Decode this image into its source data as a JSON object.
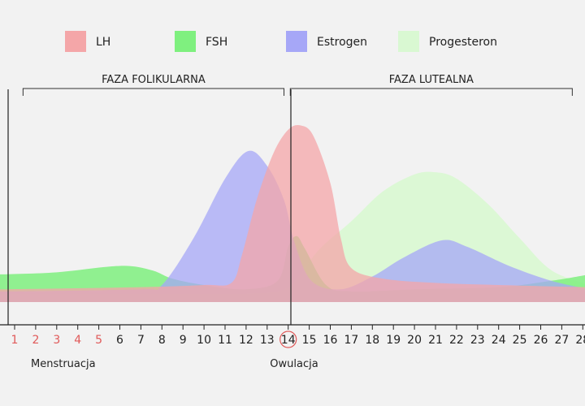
{
  "chart_data": {
    "type": "area",
    "legend_placement": "top",
    "grid": false,
    "legend": [
      {
        "name": "LH",
        "color": "#f4a6a8"
      },
      {
        "name": "FSH",
        "color": "#7ff07f"
      },
      {
        "name": "Estrogen",
        "color": "#a6a7f7"
      },
      {
        "name": "Progesteron",
        "color": "#d9f8d2"
      }
    ],
    "phases": [
      {
        "label": "FAZA FOLIKULARNA",
        "start": 1.4,
        "end": 13.8
      },
      {
        "label": "FAZA LUTEALNA",
        "start": 14.1,
        "end": 27.5
      }
    ],
    "x": [
      1,
      2,
      3,
      4,
      5,
      6,
      7,
      8,
      9,
      10,
      11,
      12,
      13,
      14,
      15,
      16,
      17,
      18,
      19,
      20,
      21,
      22,
      23,
      24,
      25,
      26,
      27,
      28
    ],
    "x_labels": [
      "1",
      "2",
      "3",
      "4",
      "5",
      "6",
      "7",
      "8",
      "9",
      "10",
      "11",
      "12",
      "13",
      "14",
      "15",
      "16",
      "17",
      "18",
      "19",
      "20",
      "21",
      "22",
      "23",
      "24",
      "25",
      "26",
      "27",
      "28"
    ],
    "menstruation_days": [
      1,
      2,
      3,
      4,
      5
    ],
    "menstruation_color": "#e05a5a",
    "ovulation_day": 14,
    "ovulation_color": "#e05a5a",
    "xlim": [
      0.3,
      28.3
    ],
    "ylim": [
      0,
      100
    ],
    "series": [
      {
        "name": "Progesteron",
        "color": "#d9f8d2",
        "opacity": 0.9,
        "points": [
          [
            0.3,
            4
          ],
          [
            6,
            4
          ],
          [
            12,
            4
          ],
          [
            13.8,
            6
          ],
          [
            14.5,
            12
          ],
          [
            15.5,
            25
          ],
          [
            17,
            38
          ],
          [
            18.5,
            52
          ],
          [
            20,
            60
          ],
          [
            21,
            61
          ],
          [
            22,
            58
          ],
          [
            23.5,
            46
          ],
          [
            25,
            30
          ],
          [
            26.5,
            15
          ],
          [
            28.3,
            8
          ]
        ]
      },
      {
        "name": "FSH",
        "color": "#7ff07f",
        "opacity": 0.85,
        "points": [
          [
            0.3,
            13
          ],
          [
            3,
            14
          ],
          [
            6,
            17
          ],
          [
            7.5,
            15
          ],
          [
            8.5,
            11
          ],
          [
            10,
            8
          ],
          [
            12,
            6
          ],
          [
            13.5,
            10
          ],
          [
            14,
            26
          ],
          [
            14.4,
            31
          ],
          [
            14.8,
            25
          ],
          [
            15.8,
            8
          ],
          [
            17,
            5
          ],
          [
            20,
            6
          ],
          [
            24,
            7
          ],
          [
            26.5,
            10
          ],
          [
            28.3,
            13
          ]
        ]
      },
      {
        "name": "Estrogen",
        "color": "#a6a7f7",
        "opacity": 0.75,
        "points": [
          [
            0.3,
            5
          ],
          [
            7,
            6
          ],
          [
            8,
            8
          ],
          [
            9.5,
            30
          ],
          [
            11,
            58
          ],
          [
            12.1,
            71
          ],
          [
            13,
            64
          ],
          [
            13.8,
            48
          ],
          [
            14.3,
            28
          ],
          [
            15.1,
            10
          ],
          [
            16.5,
            6
          ],
          [
            18,
            12
          ],
          [
            19.5,
            21
          ],
          [
            21.3,
            29
          ],
          [
            22.5,
            26
          ],
          [
            24.5,
            17
          ],
          [
            26.5,
            10
          ],
          [
            28.3,
            6
          ]
        ]
      },
      {
        "name": "LH",
        "color": "#f4a6a8",
        "opacity": 0.75,
        "points": [
          [
            0.3,
            6
          ],
          [
            7,
            7
          ],
          [
            10,
            8
          ],
          [
            11.3,
            9
          ],
          [
            11.8,
            22
          ],
          [
            12.5,
            48
          ],
          [
            13.3,
            70
          ],
          [
            14,
            81
          ],
          [
            14.6,
            83
          ],
          [
            15.2,
            78
          ],
          [
            16,
            56
          ],
          [
            16.5,
            30
          ],
          [
            17,
            16
          ],
          [
            18.5,
            11
          ],
          [
            21,
            9
          ],
          [
            24,
            8
          ],
          [
            28.3,
            7
          ]
        ]
      }
    ],
    "annotations": [
      {
        "text": "Menstruacja",
        "x": 1.8
      },
      {
        "text": "Owulacja",
        "x": 14
      }
    ]
  }
}
